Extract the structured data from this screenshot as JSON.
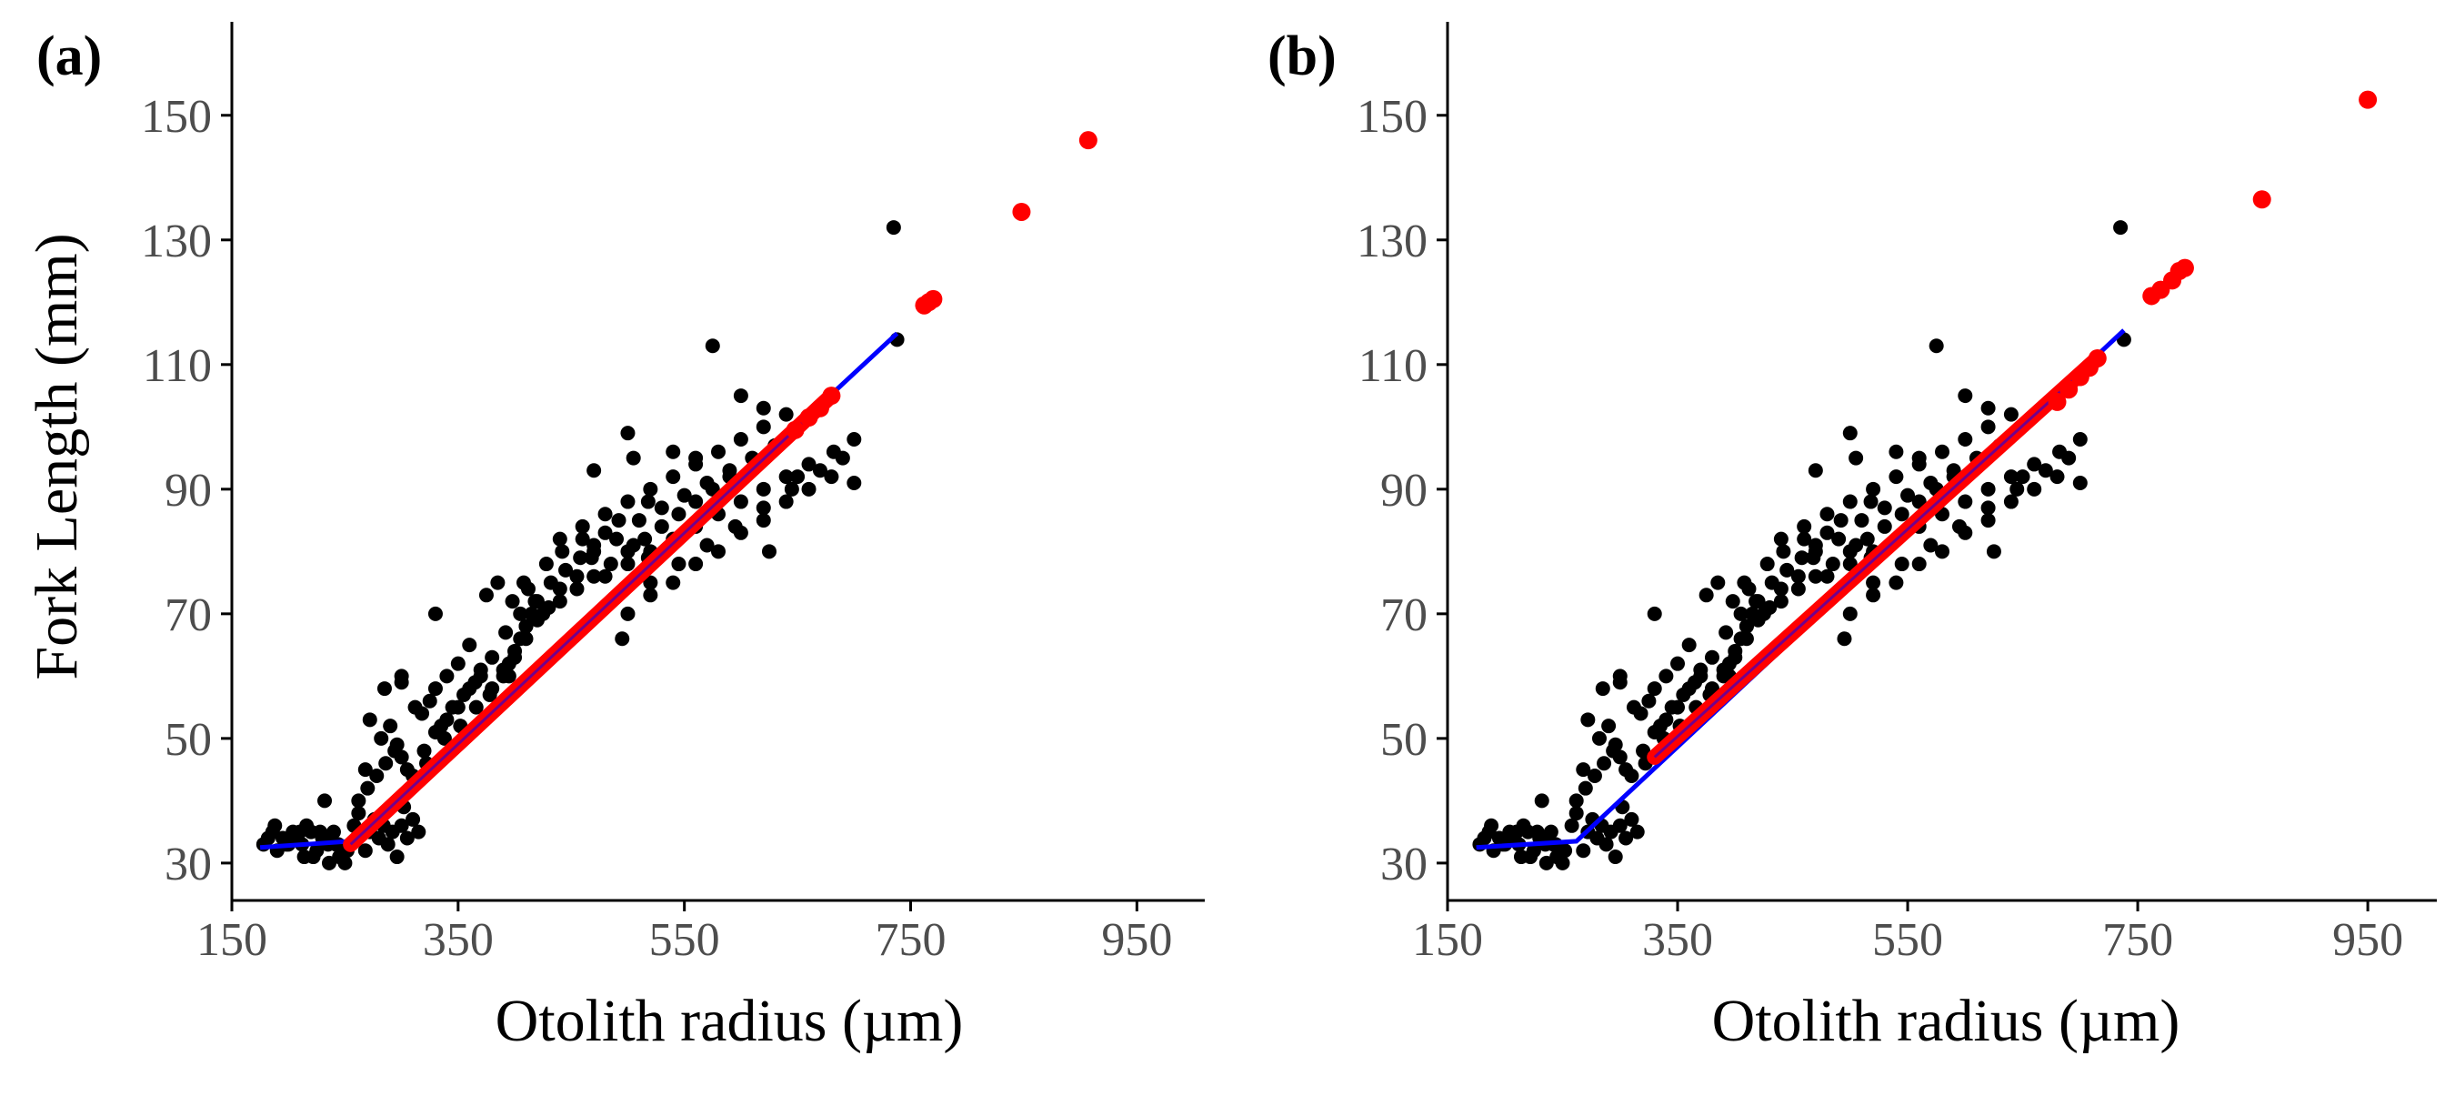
{
  "colors": {
    "observed_points": "#000000",
    "back_calculated_points": "#ff0000",
    "fit_line": "#0000ff",
    "axis": "#000000",
    "tick_labels": "#4d4d4d"
  },
  "chart_data": [
    {
      "type": "scatter",
      "panel_label": "(a)",
      "title": "",
      "xlabel": "Otolith radius (µm)",
      "ylabel": "Fork Length (mm)",
      "xlim": [
        150,
        1010
      ],
      "ylim": [
        24,
        165
      ],
      "x_ticks": [
        150,
        350,
        550,
        750,
        950
      ],
      "y_ticks": [
        30,
        50,
        70,
        90,
        110,
        130,
        150
      ],
      "grid": false,
      "legend": "none",
      "fit_line": {
        "x": [
          175,
          255,
          738
        ],
        "y": [
          32.5,
          33.5,
          115
        ]
      },
      "back_calculated_line": {
        "x": [
          255,
          680
        ],
        "y": [
          33,
          105
        ],
        "point_x": [
          648,
          660,
          670,
          680,
          762,
          766,
          770,
          848,
          907
        ],
        "point_y": [
          99.5,
          101.5,
          103,
          105,
          119.5,
          120,
          120.5,
          134.5,
          146
        ]
      },
      "series": [
        {
          "name": "",
          "x": [
            178,
            182,
            186,
            190,
            195,
            200,
            204,
            208,
            212,
            216,
            220,
            225,
            230,
            235,
            240,
            245,
            250,
            188,
            198,
            210,
            222,
            232,
            242,
            252,
            236,
            214,
            228,
            244,
            258,
            262,
            268,
            272,
            276,
            280,
            284,
            288,
            292,
            296,
            300,
            305,
            310,
            315,
            262,
            270,
            278,
            286,
            294,
            302,
            310,
            268,
            282,
            290,
            300,
            312,
            272,
            296,
            285,
            300,
            305,
            318,
            325,
            330,
            335,
            340,
            345,
            350,
            355,
            360,
            365,
            370,
            320,
            330,
            340,
            350,
            360,
            370,
            380,
            322,
            338,
            352,
            366,
            378,
            390,
            395,
            400,
            405,
            410,
            415,
            420,
            380,
            390,
            400,
            410,
            420,
            430,
            440,
            392,
            405,
            418,
            432,
            445,
            458,
            470,
            375,
            385,
            398,
            412,
            428,
            442,
            455,
            468,
            480,
            492,
            505,
            518,
            410,
            425,
            440,
            455,
            470,
            485,
            500,
            515,
            530,
            545,
            560,
            575,
            590,
            440,
            460,
            480,
            500,
            520,
            540,
            560,
            580,
            600,
            620,
            640,
            470,
            490,
            510,
            530,
            550,
            570,
            590,
            610,
            630,
            500,
            520,
            540,
            560,
            580,
            600,
            620,
            640,
            660,
            680,
            520,
            545,
            570,
            595,
            620,
            645,
            670,
            690,
            700,
            480,
            500,
            520,
            540,
            560,
            580,
            600,
            620,
            640,
            660,
            682,
            700,
            738,
            735,
            575,
            620,
            650,
            500,
            470,
            505,
            395,
            300,
            232,
            408,
            330,
            518,
            460,
            495,
            540,
            560,
            600,
            625
          ],
          "y": [
            33,
            34,
            35,
            32,
            34,
            33,
            35,
            34,
            33,
            36,
            35,
            32,
            34,
            33,
            35,
            31,
            30,
            36,
            33,
            35,
            31,
            34,
            33,
            32,
            30,
            31,
            35,
            33,
            36,
            38,
            32,
            35,
            37,
            34,
            36,
            33,
            35,
            31,
            36,
            34,
            37,
            35,
            40,
            42,
            44,
            46,
            48,
            39,
            44,
            45,
            50,
            52,
            47,
            55,
            53,
            49,
            58,
            60,
            45,
            54,
            56,
            58,
            52,
            60,
            55,
            62,
            57,
            65,
            59,
            61,
            48,
            51,
            53,
            55,
            58,
            60,
            63,
            46,
            50,
            52,
            55,
            57,
            60,
            62,
            64,
            66,
            68,
            70,
            72,
            58,
            61,
            63,
            66,
            69,
            71,
            74,
            67,
            70,
            72,
            75,
            77,
            79,
            81,
            73,
            75,
            72,
            74,
            78,
            80,
            76,
            79,
            83,
            85,
            81,
            88,
            68,
            70,
            72,
            74,
            76,
            78,
            80,
            82,
            84,
            86,
            88,
            90,
            92,
            82,
            84,
            86,
            88,
            90,
            92,
            94,
            96,
            98,
            100,
            102,
            80,
            82,
            85,
            87,
            89,
            91,
            93,
            95,
            97,
            70,
            73,
            75,
            78,
            80,
            83,
            85,
            88,
            90,
            92,
            75,
            78,
            81,
            84,
            87,
            90,
            93,
            95,
            98,
            76,
            78,
            80,
            82,
            84,
            86,
            88,
            90,
            92,
            94,
            96,
            91,
            114,
            132,
            113,
            103,
            92,
            99,
            93,
            95,
            60,
            59,
            40,
            75,
            70,
            79,
            82,
            66,
            96,
            95,
            105,
            80
          ]
        }
      ]
    },
    {
      "type": "scatter",
      "panel_label": "(b)",
      "title": "",
      "xlabel": "Otolith radius (µm)",
      "ylabel": "",
      "xlim": [
        150,
        1010
      ],
      "ylim": [
        24,
        165
      ],
      "x_ticks": [
        150,
        350,
        550,
        750,
        950
      ],
      "y_ticks": [
        30,
        50,
        70,
        90,
        110,
        130,
        150
      ],
      "grid": false,
      "legend": "none",
      "fit_line": {
        "x": [
          175,
          262,
          738
        ],
        "y": [
          32.5,
          33.5,
          115.5
        ]
      },
      "back_calculated_line": {
        "x": [
          330,
          715
        ],
        "y": [
          47,
          111
        ],
        "point_x": [
          680,
          690,
          700,
          708,
          715,
          762,
          770,
          780,
          786,
          791,
          858,
          950
        ],
        "point_y": [
          104,
          106,
          108,
          109.5,
          111,
          121,
          122,
          123.5,
          125,
          125.5,
          136.5,
          152.5
        ]
      },
      "series": [
        {
          "name": "",
          "x": [
            178,
            182,
            186,
            190,
            195,
            200,
            204,
            208,
            212,
            216,
            220,
            225,
            230,
            235,
            240,
            245,
            250,
            188,
            198,
            210,
            222,
            232,
            242,
            252,
            236,
            214,
            228,
            244,
            258,
            262,
            268,
            272,
            276,
            280,
            284,
            288,
            292,
            296,
            300,
            305,
            310,
            315,
            262,
            270,
            278,
            286,
            294,
            302,
            310,
            268,
            282,
            290,
            300,
            312,
            272,
            296,
            285,
            300,
            305,
            318,
            325,
            330,
            335,
            340,
            345,
            350,
            355,
            360,
            365,
            370,
            320,
            330,
            340,
            350,
            360,
            370,
            380,
            322,
            338,
            352,
            366,
            378,
            390,
            395,
            400,
            405,
            410,
            415,
            420,
            380,
            390,
            400,
            410,
            420,
            430,
            440,
            392,
            405,
            418,
            432,
            445,
            458,
            470,
            375,
            385,
            398,
            412,
            428,
            442,
            455,
            468,
            480,
            492,
            505,
            518,
            410,
            425,
            440,
            455,
            470,
            485,
            500,
            515,
            530,
            545,
            560,
            575,
            590,
            440,
            460,
            480,
            500,
            520,
            540,
            560,
            580,
            600,
            620,
            640,
            470,
            490,
            510,
            530,
            550,
            570,
            590,
            610,
            630,
            500,
            520,
            540,
            560,
            580,
            600,
            620,
            640,
            660,
            680,
            520,
            545,
            570,
            595,
            620,
            645,
            670,
            690,
            700,
            480,
            500,
            520,
            540,
            560,
            580,
            600,
            620,
            640,
            660,
            682,
            700,
            738,
            735,
            575,
            620,
            650,
            500,
            470,
            505,
            395,
            300,
            232,
            408,
            330,
            518,
            460,
            495,
            540,
            560,
            600,
            625
          ],
          "y": [
            33,
            34,
            35,
            32,
            34,
            33,
            35,
            34,
            33,
            36,
            35,
            32,
            34,
            33,
            35,
            31,
            30,
            36,
            33,
            35,
            31,
            34,
            33,
            32,
            30,
            31,
            35,
            33,
            36,
            38,
            32,
            35,
            37,
            34,
            36,
            33,
            35,
            31,
            36,
            34,
            37,
            35,
            40,
            42,
            44,
            46,
            48,
            39,
            44,
            45,
            50,
            52,
            47,
            55,
            53,
            49,
            58,
            60,
            45,
            54,
            56,
            58,
            52,
            60,
            55,
            62,
            57,
            65,
            59,
            61,
            48,
            51,
            53,
            55,
            58,
            60,
            63,
            46,
            50,
            52,
            55,
            57,
            60,
            62,
            64,
            66,
            68,
            70,
            72,
            58,
            61,
            63,
            66,
            69,
            71,
            74,
            67,
            70,
            72,
            75,
            77,
            79,
            81,
            73,
            75,
            72,
            74,
            78,
            80,
            76,
            79,
            83,
            85,
            81,
            88,
            68,
            70,
            72,
            74,
            76,
            78,
            80,
            82,
            84,
            86,
            88,
            90,
            92,
            82,
            84,
            86,
            88,
            90,
            92,
            94,
            96,
            98,
            100,
            102,
            80,
            82,
            85,
            87,
            89,
            91,
            93,
            95,
            97,
            70,
            73,
            75,
            78,
            80,
            83,
            85,
            88,
            90,
            92,
            75,
            78,
            81,
            84,
            87,
            90,
            93,
            95,
            98,
            76,
            78,
            80,
            82,
            84,
            86,
            88,
            90,
            92,
            94,
            96,
            91,
            114,
            132,
            113,
            103,
            92,
            99,
            93,
            95,
            60,
            59,
            40,
            75,
            70,
            79,
            82,
            66,
            96,
            95,
            105,
            80
          ]
        }
      ]
    }
  ]
}
